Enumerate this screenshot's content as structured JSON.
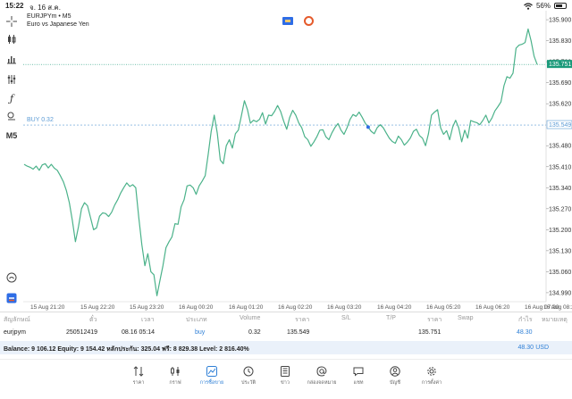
{
  "status_bar": {
    "time": "15:22",
    "date": "จ. 16 ส.ค.",
    "battery": "56%",
    "battery_level": 0.56
  },
  "symbol": {
    "title": "EURJPYm • M5",
    "description": "Euro vs Japanese Yen"
  },
  "timeframe": "M5",
  "buy_line_label": "BUY 0.32",
  "current_price_tag": "135.751",
  "buy_price_tag": "135.549",
  "colors": {
    "line": "#4bb28a",
    "accent": "#2e7fd6",
    "buy": "#5b9bd5",
    "price_tag": "#1a9a7a"
  },
  "chart_data": {
    "type": "line",
    "y_ticks": [
      "135.900",
      "135.830",
      "135.760",
      "135.690",
      "135.620",
      "135.549",
      "135.480",
      "135.410",
      "135.340",
      "135.270",
      "135.200",
      "135.130",
      "135.060",
      "134.990"
    ],
    "x_ticks": [
      "15 Aug 21:20",
      "15 Aug 22:20",
      "15 Aug 23:20",
      "16 Aug 00:20",
      "16 Aug 01:20",
      "16 Aug 02:20",
      "16 Aug 03:20",
      "16 Aug 04:20",
      "16 Aug 05:20",
      "16 Aug 06:20",
      "16 Aug 07:20",
      "16 Aug 08:2"
    ],
    "ylim": [
      134.96,
      135.93
    ],
    "bid_line": 135.751,
    "buy_line": 135.549,
    "entry_marker": {
      "index": 114,
      "value": 135.542
    },
    "values": [
      135.418,
      135.412,
      135.408,
      135.402,
      135.412,
      135.398,
      135.416,
      135.42,
      135.406,
      135.418,
      135.405,
      135.398,
      135.38,
      135.36,
      135.33,
      135.29,
      135.23,
      135.16,
      135.21,
      135.27,
      135.29,
      135.28,
      135.24,
      135.2,
      135.206,
      135.245,
      135.256,
      135.254,
      135.244,
      135.258,
      135.282,
      135.3,
      135.322,
      135.34,
      135.356,
      135.344,
      135.35,
      135.34,
      135.24,
      135.15,
      135.08,
      135.12,
      135.06,
      135.05,
      134.98,
      135.03,
      135.08,
      135.14,
      135.16,
      135.176,
      135.22,
      135.218,
      135.276,
      135.3,
      135.346,
      135.349,
      135.34,
      135.318,
      135.346,
      135.362,
      135.38,
      135.452,
      135.528,
      135.582,
      135.522,
      135.432,
      135.42,
      135.48,
      135.5,
      135.472,
      135.52,
      135.532,
      135.58,
      135.63,
      135.6,
      135.555,
      135.565,
      135.56,
      135.568,
      135.59,
      135.552,
      135.582,
      135.58,
      135.594,
      135.614,
      135.594,
      135.562,
      135.535,
      135.574,
      135.598,
      135.582,
      135.556,
      135.54,
      135.51,
      135.5,
      135.478,
      135.492,
      135.51,
      135.532,
      135.533,
      135.51,
      135.5,
      135.523,
      135.541,
      135.554,
      135.532,
      135.518,
      135.54,
      135.568,
      135.584,
      135.578,
      135.592,
      135.575,
      135.556,
      135.542,
      135.528,
      135.52,
      135.54,
      135.55,
      135.54,
      135.522,
      135.505,
      135.494,
      135.488,
      135.512,
      135.5,
      135.482,
      135.492,
      135.506,
      135.528,
      135.535,
      135.514,
      135.505,
      135.48,
      135.52,
      135.582,
      135.592,
      135.6,
      135.54,
      135.518,
      135.53,
      135.5,
      135.542,
      135.565,
      135.54,
      135.493,
      135.532,
      135.505,
      135.564,
      135.56,
      135.557,
      135.55,
      135.564,
      135.582,
      135.556,
      135.572,
      135.596,
      135.61,
      135.626,
      135.68,
      135.71,
      135.705,
      135.722,
      135.805,
      135.815,
      135.818,
      135.824,
      135.869,
      135.83,
      135.778,
      135.751
    ]
  },
  "table": {
    "headers": [
      "สัญลักษณ์",
      "ตั๋ว",
      "เวลา",
      "ประเภท",
      "Volume",
      "ราคา",
      "S/L",
      "T/P",
      "ราคา",
      "Swap",
      "กำไร",
      "หมายเหตุ"
    ],
    "row": {
      "symbol": "eurjpym",
      "ticket": "250512419",
      "time": "08.16 05:14",
      "type": "buy",
      "volume": "0.32",
      "price_open": "135.549",
      "price_current": "135.751",
      "profit": "48.30"
    }
  },
  "balance": {
    "text": "Balance: 9 106.12 Equity: 9 154.42 หลักประกัน: 325.04 ฟรี: 8 829.38 Level: 2 816.40%",
    "profit": "48.30",
    "currency": "USD"
  },
  "nav": [
    {
      "label": "ราคา",
      "icon": "quotes-icon"
    },
    {
      "label": "กราฟ",
      "icon": "chart-icon"
    },
    {
      "label": "การซื้อขาย",
      "icon": "trade-icon",
      "active": true
    },
    {
      "label": "ประวัติ",
      "icon": "history-icon"
    },
    {
      "label": "ข่าว",
      "icon": "news-icon"
    },
    {
      "label": "กล่องจดหมาย",
      "icon": "mailbox-icon"
    },
    {
      "label": "แชท",
      "icon": "chat-icon"
    },
    {
      "label": "บัญชี",
      "icon": "account-icon"
    },
    {
      "label": "การตั้งค่า",
      "icon": "settings-icon"
    }
  ]
}
